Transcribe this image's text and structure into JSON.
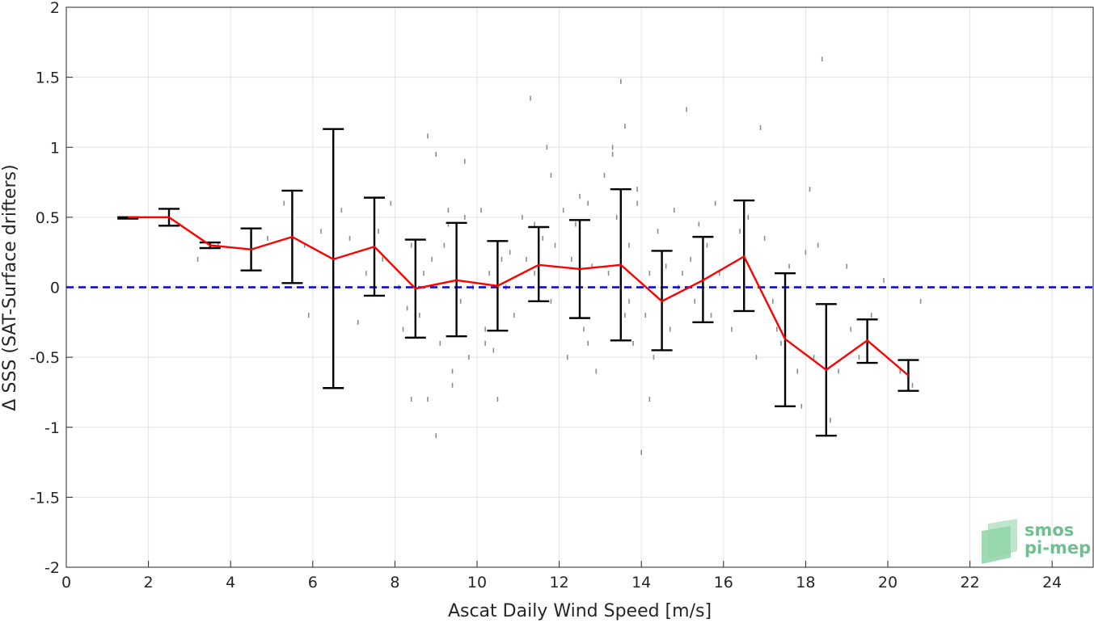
{
  "chart_data": {
    "type": "scatter",
    "xlabel": "Ascat Daily Wind Speed [m/s]",
    "ylabel": "Δ SSS (SAT-Surface drifters)",
    "xlim": [
      0,
      25
    ],
    "ylim": [
      -2,
      2
    ],
    "xticks": [
      0,
      2,
      4,
      6,
      8,
      10,
      12,
      14,
      16,
      18,
      20,
      22,
      24
    ],
    "yticks": [
      -2,
      -1.5,
      -1,
      -0.5,
      0,
      0.5,
      1,
      1.5,
      2
    ],
    "ytick_labels": [
      "-2",
      "-1.5",
      "-1",
      "-0.5",
      "0",
      "0.5",
      "1",
      "1.5",
      "2"
    ],
    "grid": true,
    "series": [
      {
        "kind": "binned_mean_line",
        "color": "#ff0000",
        "x": [
          1.5,
          2.5,
          3.5,
          4.5,
          5.5,
          6.5,
          7.5,
          8.5,
          9.5,
          10.5,
          11.5,
          12.5,
          13.5,
          14.5,
          15.5,
          16.5,
          17.5,
          18.5,
          19.5,
          20.5
        ],
        "y": [
          0.5,
          0.5,
          0.3,
          0.27,
          0.36,
          0.2,
          0.29,
          -0.01,
          0.05,
          0.01,
          0.16,
          0.13,
          0.16,
          -0.1,
          0.05,
          0.22,
          -0.37,
          -0.59,
          -0.38,
          -0.63
        ]
      },
      {
        "kind": "error_bars",
        "color": "#000000",
        "x": [
          1.5,
          2.5,
          3.5,
          4.5,
          5.5,
          6.5,
          7.5,
          8.5,
          9.5,
          10.5,
          11.5,
          12.5,
          13.5,
          14.5,
          15.5,
          16.5,
          17.5,
          18.5,
          19.5,
          20.5
        ],
        "low": [
          0.49,
          0.44,
          0.28,
          0.12,
          0.03,
          -0.72,
          -0.06,
          -0.36,
          -0.35,
          -0.31,
          -0.1,
          -0.22,
          -0.38,
          -0.45,
          -0.25,
          -0.17,
          -0.85,
          -1.06,
          -0.54,
          -0.74
        ],
        "high": [
          0.5,
          0.56,
          0.32,
          0.42,
          0.69,
          1.13,
          0.64,
          0.34,
          0.46,
          0.33,
          0.43,
          0.48,
          0.7,
          0.26,
          0.36,
          0.62,
          0.1,
          -0.12,
          -0.23,
          -0.52
        ]
      },
      {
        "kind": "reference_line",
        "color": "#0000e0",
        "style": "dashed",
        "y": 0
      },
      {
        "kind": "raw_points",
        "color": "#8c8c8c",
        "x": [
          3.2,
          3.7,
          4.9,
          5.3,
          5.8,
          5.9,
          6.2,
          6.7,
          6.9,
          7.1,
          7.3,
          7.6,
          7.7,
          7.9,
          8.1,
          8.2,
          8.3,
          8.4,
          8.6,
          8.7,
          8.8,
          8.9,
          9.0,
          9.1,
          9.2,
          9.3,
          9.4,
          9.5,
          9.6,
          9.7,
          9.8,
          9.9,
          10.1,
          10.2,
          10.3,
          10.4,
          10.6,
          10.7,
          10.8,
          10.9,
          11.1,
          11.2,
          11.3,
          11.4,
          11.6,
          11.7,
          11.8,
          11.9,
          12.1,
          12.2,
          12.3,
          12.4,
          12.6,
          12.7,
          12.8,
          12.9,
          13.1,
          13.2,
          13.3,
          13.4,
          13.6,
          13.7,
          13.8,
          13.9,
          14.1,
          14.2,
          14.3,
          14.4,
          14.6,
          14.7,
          14.8,
          14.9,
          15.1,
          15.2,
          15.3,
          15.4,
          15.6,
          15.7,
          15.8,
          15.9,
          16.2,
          16.4,
          16.6,
          16.8,
          17.0,
          17.2,
          17.4,
          17.6,
          17.8,
          17.9,
          18.1,
          18.2,
          18.4,
          18.6,
          18.8,
          19.1,
          19.3,
          19.6,
          19.9,
          20.3,
          20.6,
          20.8,
          8.8,
          9.0,
          9.7,
          10.5,
          11.4,
          12.7,
          13.3,
          13.5,
          13.7,
          14.2,
          14.0,
          15.0,
          17.3,
          18.0,
          18.3,
          16.9,
          19.0,
          9.3,
          10.2,
          11.8,
          12.5,
          13.6,
          13.9,
          8.4,
          9.4
        ],
        "y": [
          0.2,
          0.3,
          0.35,
          0.6,
          0.3,
          -0.2,
          0.4,
          0.55,
          0.35,
          -0.25,
          0.1,
          0.4,
          0.2,
          0.6,
          0.0,
          -0.3,
          -0.15,
          0.3,
          -0.2,
          0.1,
          -0.8,
          0.2,
          0.95,
          -0.4,
          0.3,
          0.45,
          -0.6,
          0.25,
          -0.1,
          0.5,
          -0.5,
          0.0,
          0.55,
          -0.3,
          0.1,
          -0.45,
          0.2,
          0.0,
          0.25,
          -0.2,
          0.5,
          0.2,
          1.35,
          0.1,
          0.35,
          1.0,
          -0.1,
          0.3,
          0.55,
          -0.5,
          0.2,
          0.45,
          -0.3,
          0.6,
          0.15,
          -0.6,
          0.8,
          0.1,
          1.0,
          0.5,
          1.15,
          0.3,
          -0.4,
          0.6,
          -0.2,
          0.1,
          -0.5,
          0.4,
          0.15,
          -0.3,
          0.55,
          0.0,
          1.27,
          0.2,
          -0.1,
          0.45,
          0.3,
          -0.2,
          0.6,
          0.1,
          -0.3,
          0.4,
          0.5,
          -0.5,
          0.35,
          -0.1,
          -0.4,
          0.15,
          -0.6,
          -0.85,
          0.7,
          -0.5,
          1.63,
          -0.95,
          -0.6,
          -0.3,
          -0.5,
          -0.2,
          0.05,
          -0.6,
          -0.7,
          -0.1,
          1.08,
          -1.06,
          0.9,
          -0.8,
          0.45,
          -0.4,
          0.95,
          1.47,
          -0.1,
          -0.8,
          -1.18,
          0.1,
          -0.3,
          0.25,
          0.3,
          1.14,
          0.15,
          0.55,
          -0.4,
          0.8,
          0.65,
          -0.2,
          0.7,
          -0.8,
          -0.7
        ]
      }
    ]
  },
  "logo": {
    "line1": "smos",
    "line2": "pi-mep",
    "color": "#6fbf8f"
  }
}
